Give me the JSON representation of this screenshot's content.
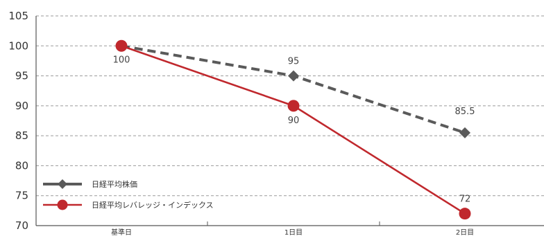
{
  "chart_data": {
    "type": "line",
    "categories": [
      "基準日",
      "1日目",
      "2日目"
    ],
    "ylim": [
      70,
      105
    ],
    "yticks": [
      70,
      75,
      80,
      85,
      90,
      95,
      100,
      105
    ],
    "grid": true,
    "legend_position": "bottom-left",
    "series": [
      {
        "name": "日経平均株価",
        "values": [
          100,
          95,
          85.5
        ],
        "labels": [
          "",
          "95",
          "85.5"
        ],
        "color": "#5a5a5a",
        "style": "dashed",
        "marker": "diamond"
      },
      {
        "name": "日経平均レバレッジ・インデックス",
        "values": [
          100,
          90,
          72
        ],
        "labels": [
          "100",
          "90",
          "72"
        ],
        "color": "#c0282d",
        "style": "solid",
        "marker": "circle"
      }
    ]
  }
}
